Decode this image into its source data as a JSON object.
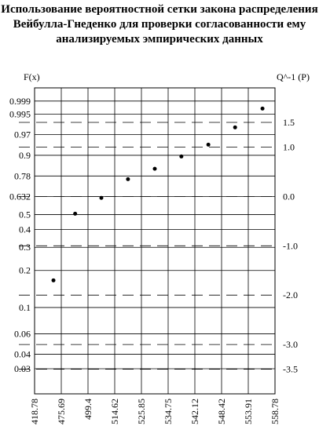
{
  "chart_data": {
    "type": "scatter",
    "title": [
      "Использование вероятностной сетки закона распределения",
      "Вейбулла-Гнеденко для проверки согласованности ему",
      "анализируемых эмпирических данных"
    ],
    "y_label": "F(x)",
    "y2_label": "Q^-1 (P)",
    "x": [
      459,
      488,
      507,
      520.2,
      530.3,
      538.4,
      545.3,
      551.2,
      556.5
    ],
    "values": [
      -1.7,
      -0.35,
      -0.03,
      0.35,
      0.56,
      0.81,
      1.05,
      1.4,
      1.78
    ],
    "color": "#000000",
    "xticks": [
      418.78,
      475.69,
      499.4,
      514.62,
      525.85,
      534.75,
      542.12,
      548.42,
      553.91,
      558.78
    ],
    "yticks": [
      0.999,
      0.995,
      0.97,
      0.9,
      0.78,
      0.632,
      0.5,
      0.4,
      0.3,
      0.2,
      0.1,
      0.06,
      0.04,
      0.03
    ],
    "ylim": [
      -4.0,
      2.2
    ],
    "y2ticks": [
      1.5,
      {
        "value": 1,
        "label": "1.0"
      },
      {
        "value": 0,
        "label": "0.0"
      },
      {
        "value": -1,
        "label": "-1.0"
      },
      {
        "value": -2,
        "label": "-2.0"
      },
      {
        "value": -3,
        "label": "-3.0"
      },
      -3.5
    ],
    "grid": true
  }
}
